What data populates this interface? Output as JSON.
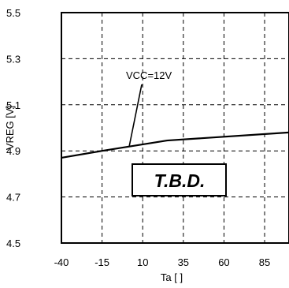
{
  "chart_data": {
    "type": "line",
    "xlabel": "Ta [   ]",
    "ylabel": "VREG [V]",
    "x_ticks": [
      "-40",
      "-15",
      "10",
      "35",
      "60",
      "85"
    ],
    "y_ticks": [
      "5.5",
      "5.3",
      "5.1",
      "4.9",
      "4.7",
      "4.5"
    ],
    "xlim": [
      -40,
      100
    ],
    "ylim": [
      4.5,
      5.5
    ],
    "grid": true,
    "series": [
      {
        "name": "VCC=12V",
        "x": [
          -40,
          -15,
          25,
          100
        ],
        "y": [
          4.87,
          4.9,
          4.945,
          4.98
        ]
      }
    ],
    "annotations": {
      "series_label": "VCC=12V",
      "stamp": "T.B.D."
    },
    "colors": {
      "line": "#000000",
      "grid": "#000000",
      "background": "#ffffff"
    }
  }
}
